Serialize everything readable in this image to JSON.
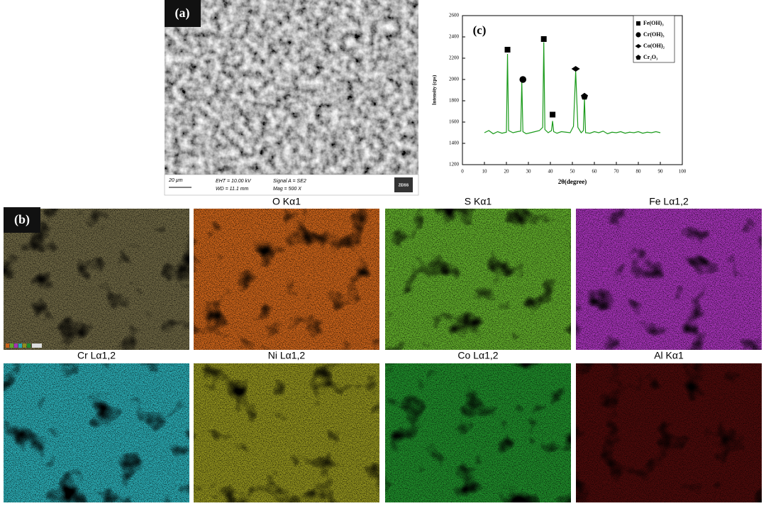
{
  "panel_a": {
    "label": "(a)",
    "scale_bar": "20 µm",
    "info": [
      "EHT = 10.00 kV",
      "WD = 11.1 mm",
      "Signal A = SE2",
      "Mag =  500 X"
    ],
    "brand": "ZEISS"
  },
  "panel_b": {
    "label": "(b)",
    "electron_image_color": "#6b6442",
    "maps": [
      {
        "title": "O Kα1",
        "color": "#c8621a"
      },
      {
        "title": "S Kα1",
        "color": "#5fa82a"
      },
      {
        "title": "Fe Lα1,2",
        "color": "#a232b4"
      },
      {
        "title": "Cr Lα1,2",
        "color": "#2aa8b0"
      },
      {
        "title": "Ni Lα1,2",
        "color": "#8e8e1e"
      },
      {
        "title": "Co Lα1,2",
        "color": "#1f8a2a"
      },
      {
        "title": "Al Kα1",
        "color": "#4a0a0a"
      }
    ]
  },
  "chart_data": {
    "type": "line",
    "label": "(c)",
    "x_label": "2θ(degree)",
    "y_label": "Intensity (cps)",
    "color": "#1a9a1a",
    "xlim": [
      0,
      100
    ],
    "xticks": [
      0,
      10,
      20,
      30,
      40,
      50,
      60,
      70,
      80,
      90,
      100
    ],
    "ylim": [
      1200,
      2600
    ],
    "yticks": [
      1200,
      1400,
      1600,
      1800,
      2000,
      2200,
      2400,
      2600
    ],
    "x": [
      10,
      12,
      14,
      16,
      18,
      20,
      20.5,
      21,
      23,
      25,
      26.5,
      27,
      27.5,
      29,
      31,
      33,
      35,
      36.5,
      37,
      37.5,
      39,
      40.5,
      41,
      41.5,
      43,
      45,
      47,
      49,
      50.5,
      51.5,
      52.5,
      54,
      55,
      55.5,
      56,
      58,
      60,
      62,
      64,
      66,
      68,
      70,
      72,
      74,
      76,
      78,
      80,
      82,
      84,
      86,
      88,
      90
    ],
    "values": [
      1500,
      1520,
      1490,
      1510,
      1495,
      1505,
      2240,
      1520,
      1500,
      1510,
      1515,
      1980,
      1510,
      1490,
      1500,
      1510,
      1520,
      1550,
      2350,
      1530,
      1500,
      1520,
      1610,
      1510,
      1495,
      1510,
      1505,
      1500,
      1560,
      2080,
      1550,
      1500,
      1520,
      1820,
      1500,
      1495,
      1510,
      1500,
      1515,
      1490,
      1505,
      1500,
      1510,
      1495,
      1505,
      1500,
      1510,
      1495,
      1505,
      1500,
      1510,
      1500
    ],
    "legend": [
      {
        "name": "Fe(OH)₃",
        "symbol": "square"
      },
      {
        "name": "Cr(OH)₃",
        "symbol": "circle"
      },
      {
        "name": "Co(OH)₂",
        "symbol": "diamond"
      },
      {
        "name": "Cr₂O₃",
        "symbol": "pentagon"
      }
    ],
    "markers": [
      {
        "x": 20.5,
        "y": 2280,
        "symbol": "square"
      },
      {
        "x": 37,
        "y": 2380,
        "symbol": "square"
      },
      {
        "x": 41,
        "y": 1670,
        "symbol": "square"
      },
      {
        "x": 27.5,
        "y": 2000,
        "symbol": "circle"
      },
      {
        "x": 51.5,
        "y": 2100,
        "symbol": "diamond"
      },
      {
        "x": 55.5,
        "y": 1840,
        "symbol": "pentagon"
      }
    ]
  }
}
